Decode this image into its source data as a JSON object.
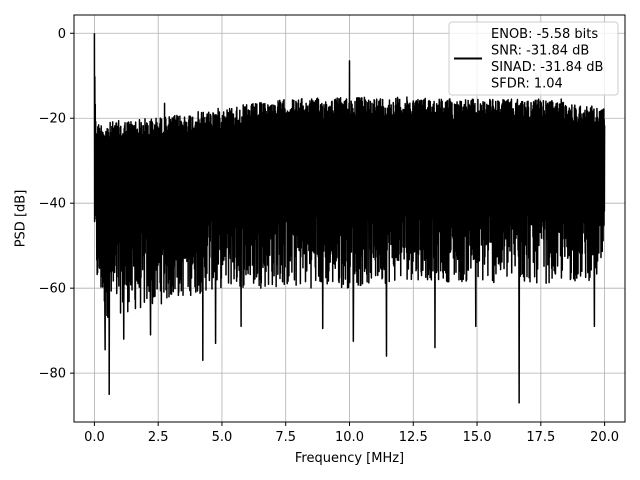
{
  "chart_data": {
    "type": "line",
    "title": "",
    "xlabel": "Frequency [MHz]",
    "ylabel": "PSD [dB]",
    "xlim": [
      -0.8,
      20.8
    ],
    "ylim": [
      -91.5,
      4.3
    ],
    "xticks": [
      0.0,
      2.5,
      5.0,
      7.5,
      10.0,
      12.5,
      15.0,
      17.5,
      20.0
    ],
    "xtick_labels": [
      "0.0",
      "2.5",
      "5.0",
      "7.5",
      "10.0",
      "12.5",
      "15.0",
      "17.5",
      "20.0"
    ],
    "yticks": [
      0,
      -20,
      -40,
      -60,
      -80
    ],
    "ytick_labels": [
      "0",
      "−20",
      "−40",
      "−60",
      "−80"
    ],
    "grid": true,
    "legend_position": "upper-right",
    "line_color": "#000000",
    "series": [
      {
        "name": "ENOB: -5.58 bits\nSNR: -31.84 dB\nSINAD: -31.84 dB\nSFDR: 1.04",
        "envelope": {
          "x": [
            0.0,
            0.05,
            0.1,
            0.2,
            0.5,
            1.0,
            2.0,
            3.0,
            5.0,
            7.5,
            10.0,
            12.5,
            15.0,
            17.5,
            20.0
          ],
          "upper": [
            0.0,
            -20,
            -21,
            -21,
            -21,
            -20.5,
            -20,
            -19.5,
            -17.5,
            -15.5,
            -15,
            -15,
            -15.5,
            -15.5,
            -17.5
          ],
          "lower": [
            -50,
            -55,
            -60,
            -62,
            -67,
            -66,
            -65,
            -63,
            -60,
            -60,
            -60,
            -58,
            -59,
            -59,
            -58
          ]
        },
        "peaks": [
          {
            "x": 0.0,
            "y": 0.0
          },
          {
            "x": 2.75,
            "y": -16.5
          },
          {
            "x": 10.0,
            "y": -6.5
          },
          {
            "x": 18.3,
            "y": -15.5
          }
        ],
        "dips": [
          {
            "x": 0.42,
            "y": -74.5
          },
          {
            "x": 0.58,
            "y": -85.0
          },
          {
            "x": 1.15,
            "y": -72.0
          },
          {
            "x": 2.2,
            "y": -71.0
          },
          {
            "x": 4.25,
            "y": -77.0
          },
          {
            "x": 4.75,
            "y": -73.0
          },
          {
            "x": 5.75,
            "y": -69.0
          },
          {
            "x": 8.95,
            "y": -69.5
          },
          {
            "x": 10.15,
            "y": -72.5
          },
          {
            "x": 11.45,
            "y": -76.0
          },
          {
            "x": 13.35,
            "y": -74.0
          },
          {
            "x": 14.95,
            "y": -69.0
          },
          {
            "x": 16.65,
            "y": -87.0
          },
          {
            "x": 19.6,
            "y": -69.0
          }
        ]
      }
    ]
  }
}
